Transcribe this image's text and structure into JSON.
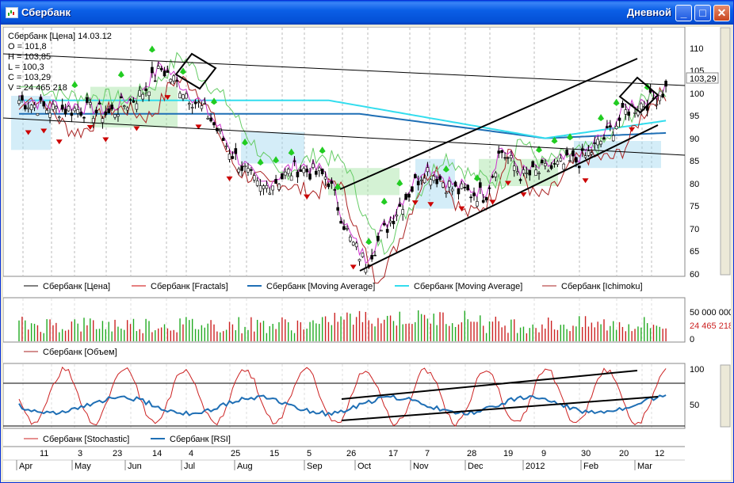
{
  "window": {
    "title": "Сбербанк",
    "period": "Дневной",
    "buttons": {
      "minimize": "_",
      "maximize": "□",
      "close": "✕"
    }
  },
  "ohlc_panel": {
    "header": "Сбербанк [Цена] 14.03.12",
    "rows": [
      "O = 101,8",
      "H = 103,85",
      "L = 100,3",
      "C = 103,29",
      "V = 24 465 218"
    ]
  },
  "price_axis": {
    "ticks": [
      "110",
      "105",
      "100",
      "95",
      "90",
      "85",
      "80",
      "75",
      "70",
      "65",
      "60"
    ],
    "last_price": "103,29"
  },
  "volume_axis": {
    "ticks": [
      "50 000 000",
      "0"
    ],
    "last_volume": "24 465 218"
  },
  "osc_axis": {
    "ticks": [
      "100",
      "50"
    ]
  },
  "legend_main": [
    {
      "label": "Сбербанк [Цена]",
      "color": "#000000"
    },
    {
      "label": "Сбербанк [Fractals]",
      "color": "#cc0000"
    },
    {
      "label": "Сбербанк [Moving Average]",
      "color": "#1f6fb5"
    },
    {
      "label": "Сбербанк [Moving Average]",
      "color": "#33ddee"
    },
    {
      "label": "Сбербанк [Ichimoku]",
      "color": "#aa2222"
    }
  ],
  "legend_volume": [
    {
      "label": "Сбербанк [Объем]",
      "color": "#aa2222"
    }
  ],
  "legend_osc": [
    {
      "label": "Сбербанк [Stochastic]",
      "color": "#cc2222"
    },
    {
      "label": "Сбербанк [RSI]",
      "color": "#1f6fb5"
    }
  ],
  "time_axis": {
    "days": [
      "11",
      "3",
      "23",
      "14",
      "4",
      "25",
      "15",
      "5",
      "26",
      "17",
      "7",
      "28",
      "19",
      "9",
      "30",
      "20",
      "12"
    ],
    "months": [
      "Apr",
      "May",
      "Jun",
      "Jul",
      "Aug",
      "Sep",
      "Oct",
      "Nov",
      "Dec",
      "2012",
      "Feb",
      "Mar"
    ]
  },
  "colors": {
    "up": "#22aa22",
    "down": "#cc0000",
    "titlebar": "#0a5fe6"
  }
}
